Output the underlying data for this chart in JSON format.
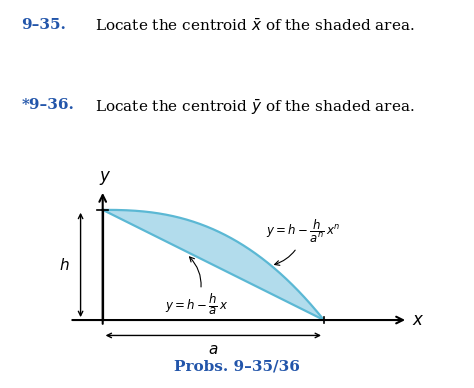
{
  "background_color": "#ffffff",
  "shaded_color": "#a8d8ea",
  "shaded_edge_color": "#5bb8d4",
  "n_power": 2.5,
  "fig_width": 4.74,
  "fig_height": 3.88,
  "prob_color": "#2255aa",
  "text_color": "#000000"
}
